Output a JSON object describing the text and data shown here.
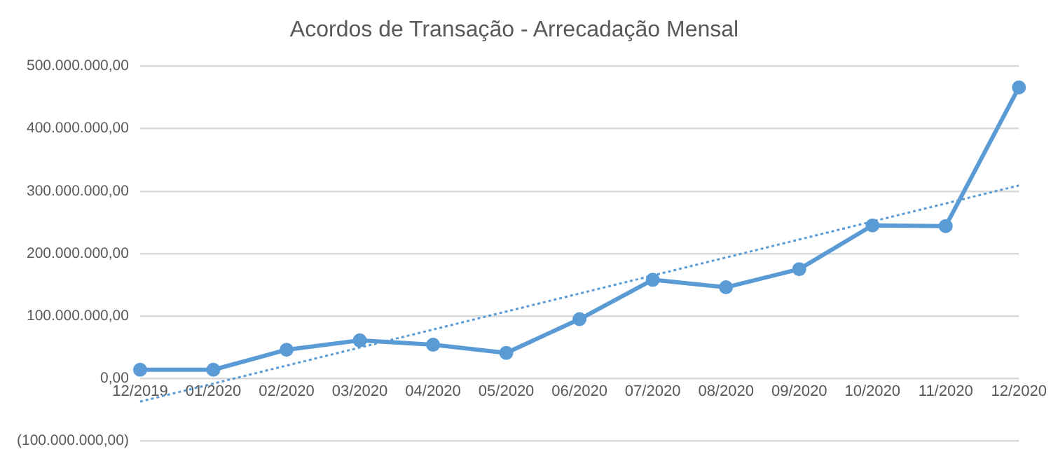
{
  "chart_data": {
    "type": "line",
    "title": "Acordos de Transação - Arrecadação Mensal",
    "categories": [
      "12/2019",
      "01/2020",
      "02/2020",
      "03/2020",
      "04/2020",
      "05/2020",
      "06/2020",
      "07/2020",
      "08/2020",
      "09/2020",
      "10/2020",
      "11/2020",
      "12/2020"
    ],
    "series": [
      {
        "color": "#5b9bd5",
        "marker": "circle",
        "line_style": "solid",
        "values": [
          14000000,
          14000000,
          46000000,
          61000000,
          54000000,
          41000000,
          95000000,
          158000000,
          146000000,
          175000000,
          245000000,
          244000000,
          466000000
        ]
      },
      {
        "type": "line",
        "color": "#5b9bd5",
        "marker": "none",
        "line_style": "dotted",
        "values": [
          -37000000,
          null,
          null,
          null,
          null,
          null,
          null,
          null,
          null,
          null,
          null,
          null,
          309000000
        ]
      }
    ],
    "ylim": [
      -100000000,
      500000000
    ],
    "yticks": [
      {
        "value": -100000000,
        "label": "(100.000.000,00)"
      },
      {
        "value": 0,
        "label": "0,00"
      },
      {
        "value": 100000000,
        "label": "100.000.000,00"
      },
      {
        "value": 200000000,
        "label": "200.000.000,00"
      },
      {
        "value": 300000000,
        "label": "300.000.000,00"
      },
      {
        "value": 400000000,
        "label": "400.000.000,00"
      },
      {
        "value": 500000000,
        "label": "500.000.000,00"
      }
    ],
    "grid": "y",
    "legend": false
  }
}
